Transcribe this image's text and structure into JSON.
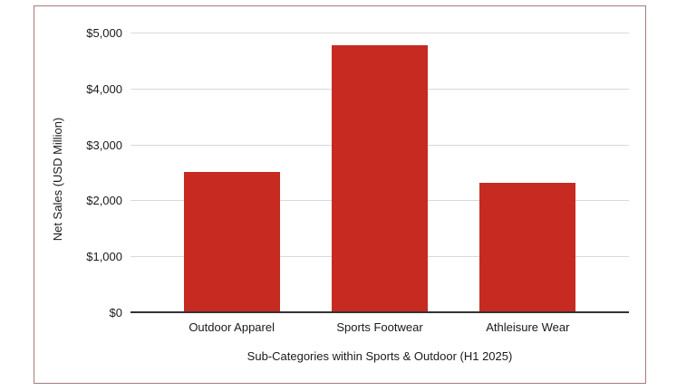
{
  "chart_data": {
    "type": "bar",
    "title": "",
    "categories": [
      "Outdoor Apparel",
      "Sports Footwear",
      "Athleisure Wear"
    ],
    "values": [
      2500,
      4750,
      2290
    ],
    "xlabel": "Sub-Categories within Sports & Outdoor (H1 2025)",
    "ylabel": "Net Sales (USD Million)",
    "ylim": [
      0,
      5000
    ],
    "ytick_step": 1000,
    "ytick_labels": [
      "$0",
      "$1,000",
      "$2,000",
      "$3,000",
      "$4,000",
      "$5,000"
    ],
    "grid": "horizontal",
    "legend": "none",
    "colors": {
      "bar": "#c62a21",
      "gridline": "#d9d9d9",
      "axis_line": "#333333",
      "text": "#1a1a1a",
      "frame_border": "#a57c7c",
      "background": "#ffffff"
    }
  }
}
